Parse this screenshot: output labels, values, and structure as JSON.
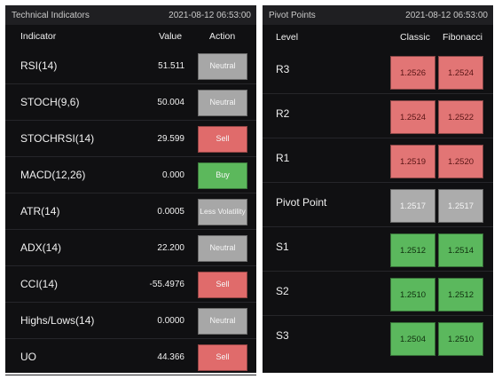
{
  "technical": {
    "title": "Technical Indicators",
    "timestamp": "2021-08-12 06:53:00",
    "columns": {
      "indicator": "Indicator",
      "value": "Value",
      "action": "Action"
    },
    "rows": [
      {
        "name": "RSI(14)",
        "value": "51.511",
        "action": "Neutral",
        "type": "neutral"
      },
      {
        "name": "STOCH(9,6)",
        "value": "50.004",
        "action": "Neutral",
        "type": "neutral"
      },
      {
        "name": "STOCHRSI(14)",
        "value": "29.599",
        "action": "Sell",
        "type": "sell"
      },
      {
        "name": "MACD(12,26)",
        "value": "0.000",
        "action": "Buy",
        "type": "buy"
      },
      {
        "name": "ATR(14)",
        "value": "0.0005",
        "action": "Less Volatility",
        "type": "neutral"
      },
      {
        "name": "ADX(14)",
        "value": "22.200",
        "action": "Neutral",
        "type": "neutral"
      },
      {
        "name": "CCI(14)",
        "value": "-55.4976",
        "action": "Sell",
        "type": "sell"
      },
      {
        "name": "Highs/Lows(14)",
        "value": "0.0000",
        "action": "Neutral",
        "type": "neutral"
      },
      {
        "name": "UO",
        "value": "44.366",
        "action": "Sell",
        "type": "sell"
      }
    ]
  },
  "pivot": {
    "title": "Pivot Points",
    "timestamp": "2021-08-12 06:53:00",
    "columns": {
      "level": "Level",
      "classic": "Classic",
      "fibonacci": "Fibonacci"
    },
    "rows": [
      {
        "level": "R3",
        "classic": "1.2526",
        "fibonacci": "1.2524",
        "type": "red"
      },
      {
        "level": "R2",
        "classic": "1.2524",
        "fibonacci": "1.2522",
        "type": "red"
      },
      {
        "level": "R1",
        "classic": "1.2519",
        "fibonacci": "1.2520",
        "type": "red"
      },
      {
        "level": "Pivot Point",
        "classic": "1.2517",
        "fibonacci": "1.2517",
        "type": "gray"
      },
      {
        "level": "S1",
        "classic": "1.2512",
        "fibonacci": "1.2514",
        "type": "green"
      },
      {
        "level": "S2",
        "classic": "1.2510",
        "fibonacci": "1.2512",
        "type": "green"
      },
      {
        "level": "S3",
        "classic": "1.2504",
        "fibonacci": "1.2510",
        "type": "green"
      }
    ]
  },
  "colors": {
    "panel_bg": "#101012",
    "header_bg": "#1f1f22",
    "neutral": "#a7a7a7",
    "sell": "#e06b6b",
    "buy": "#5cb85c"
  }
}
